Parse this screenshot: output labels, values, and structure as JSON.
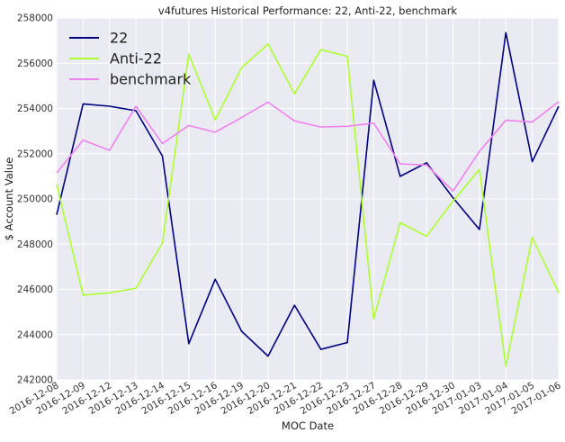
{
  "chart_data": {
    "type": "line",
    "title": "v4futures Historical Performance: 22, Anti-22, benchmark",
    "xlabel": "MOC Date",
    "ylabel": "$ Account Value",
    "categories": [
      "2016-12-08",
      "2016-12-09",
      "2016-12-12",
      "2016-12-13",
      "2016-12-14",
      "2016-12-15",
      "2016-12-16",
      "2016-12-19",
      "2016-12-20",
      "2016-12-21",
      "2016-12-22",
      "2016-12-23",
      "2016-12-27",
      "2016-12-28",
      "2016-12-29",
      "2016-12-30",
      "2017-01-03",
      "2017-01-04",
      "2017-01-05",
      "2017-01-06"
    ],
    "ylim": [
      242000,
      258000
    ],
    "yticks": [
      "242000",
      "244000",
      "246000",
      "248000",
      "250000",
      "252000",
      "254000",
      "256000",
      "258000"
    ],
    "grid": true,
    "background": "#eaeaf2",
    "legend": "top-left",
    "series": [
      {
        "name": "22",
        "color": "#000080",
        "values": [
          249300,
          254200,
          254100,
          253900,
          251900,
          243600,
          246450,
          244150,
          243050,
          245300,
          243350,
          243650,
          255250,
          251000,
          251600,
          250050,
          248650,
          257350,
          251650,
          254100
        ]
      },
      {
        "name": "Anti-22",
        "color": "#adff2f",
        "values": [
          250650,
          245750,
          245850,
          246050,
          248050,
          256400,
          253500,
          255800,
          256850,
          254650,
          256600,
          256300,
          244700,
          248950,
          248350,
          249900,
          251300,
          242600,
          248300,
          245850
        ]
      },
      {
        "name": "benchmark",
        "color": "#ee82ee",
        "values": [
          251150,
          252600,
          252150,
          254100,
          252450,
          253250,
          252950,
          253600,
          254280,
          253450,
          253180,
          253210,
          253350,
          251550,
          251500,
          250350,
          252100,
          253480,
          253400,
          254300
        ]
      }
    ]
  }
}
